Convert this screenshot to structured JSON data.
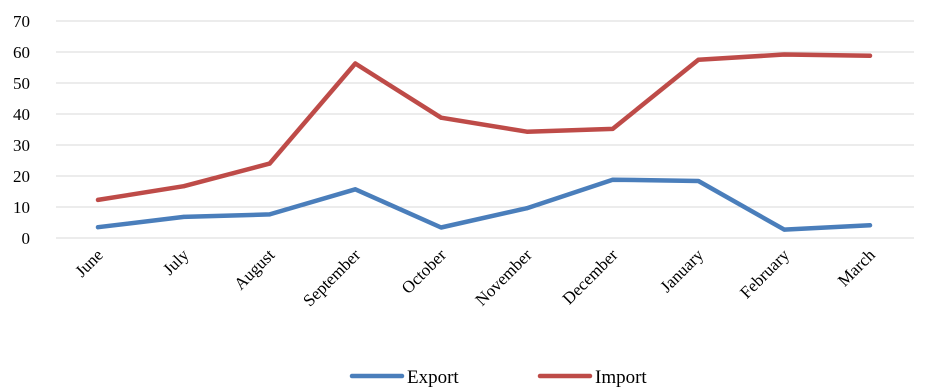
{
  "chart_data": {
    "type": "line",
    "categories": [
      "June",
      "July",
      "August",
      "September",
      "October",
      "November",
      "December",
      "January",
      "February",
      "March"
    ],
    "series": [
      {
        "name": "Export",
        "color": "#4a7ebb",
        "values": [
          3.5,
          6.8,
          7.6,
          15.7,
          3.4,
          9.6,
          18.8,
          18.4,
          2.7,
          4.1
        ]
      },
      {
        "name": "Import",
        "color": "#be4b48",
        "values": [
          12.3,
          16.7,
          24.0,
          56.3,
          38.8,
          34.3,
          35.2,
          57.5,
          59.2,
          58.8
        ]
      }
    ],
    "ylim": [
      0,
      70
    ],
    "yticks": [
      0,
      10,
      20,
      30,
      40,
      50,
      60,
      70
    ],
    "grid": true,
    "legend_position": "bottom",
    "title": "",
    "xlabel": "",
    "ylabel": ""
  }
}
